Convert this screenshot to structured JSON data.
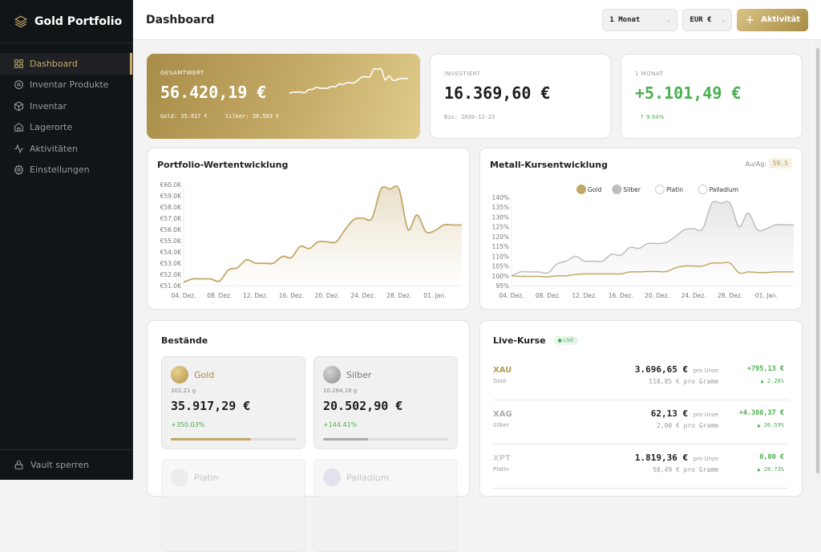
{
  "sidebar": {
    "brand": "Gold Portfolio",
    "items": [
      {
        "label": "Dashboard",
        "icon": "grid-icon",
        "active": true
      },
      {
        "label": "Inventar Produkte",
        "icon": "target-icon"
      },
      {
        "label": "Inventar",
        "icon": "box-icon"
      },
      {
        "label": "Lagerorte",
        "icon": "home-icon"
      },
      {
        "label": "Aktivitäten",
        "icon": "activity-icon"
      },
      {
        "label": "Einstellungen",
        "icon": "gear-icon"
      }
    ],
    "footer": "Vault sperren"
  },
  "header": {
    "title": "Dashboard",
    "period": "1 Monat",
    "currency": "EUR €",
    "add_label": "Aktivität"
  },
  "stats": {
    "total": {
      "label": "GESAMTWERT",
      "value": "56.420,19 €",
      "gold": "Gold: 35.917 €",
      "silver": "Silber: 20.503 €"
    },
    "invested": {
      "label": "INVESTIERT",
      "value": "16.369,60 €",
      "sub": "Bis: 2020-12-23"
    },
    "month": {
      "label": "1 MONAT",
      "value": "+5.101,49 €",
      "sub": "↑ 9.94%"
    }
  },
  "colors": {
    "gold": "#c2a867",
    "silver": "#bdbdbd",
    "positive": "#4caf50",
    "sidebar": "#111518"
  },
  "chart_data": [
    {
      "type": "area",
      "title": "Portfolio-Wertentwicklung",
      "x_ticks": [
        "04. Dez.",
        "08. Dez.",
        "12. Dez.",
        "16. Dez.",
        "20. Dez.",
        "24. Dez.",
        "28. Dez.",
        "01. Jan."
      ],
      "y_ticks": [
        "€51.0K",
        "€52.0K",
        "€53.0K",
        "€54.0K",
        "€55.0K",
        "€56.0K",
        "€57.0K",
        "€58.0K",
        "€59.0K",
        "€60.0K"
      ],
      "ylim": [
        51,
        60
      ],
      "unit": "K €",
      "grid": false,
      "series": [
        {
          "values": [
            51.3,
            51.6,
            51.6,
            51.6,
            51.4,
            52.4,
            52.6,
            53.3,
            53.0,
            53.0,
            53.0,
            53.6,
            53.5,
            54.5,
            54.3,
            54.9,
            54.9,
            54.9,
            56.0,
            56.9,
            57.0,
            57.0,
            59.6,
            59.6,
            59.6,
            56.0,
            57.3,
            55.8,
            55.9,
            56.4,
            56.4,
            56.4
          ]
        }
      ]
    },
    {
      "type": "line",
      "title": "Metall-Kursentwicklung",
      "ratio_label": "Au/Ag:",
      "ratio_value": "59.5",
      "legend_position": "top",
      "legend": [
        {
          "name": "Gold",
          "color": "#c2a867"
        },
        {
          "name": "Silber",
          "color": "#bdbdbd"
        },
        {
          "name": "Platin",
          "color": "#ffffff"
        },
        {
          "name": "Palladium",
          "color": "#ffffff"
        }
      ],
      "x_ticks": [
        "04. Dez.",
        "08. Dez.",
        "12. Dez.",
        "16. Dez.",
        "20. Dez.",
        "24. Dez.",
        "28. Dez.",
        "01. Jan."
      ],
      "y_ticks": [
        "95%",
        "100%",
        "105%",
        "110%",
        "115%",
        "120%",
        "125%",
        "130%",
        "135%",
        "140%"
      ],
      "ylim": [
        95,
        140
      ],
      "grid": false,
      "series": [
        {
          "name": "Silber",
          "values": [
            100,
            102,
            102,
            102,
            101.5,
            106,
            107.5,
            110,
            107.5,
            107.5,
            107.5,
            111,
            110.5,
            114.5,
            114,
            116.5,
            116.5,
            117,
            120,
            123.5,
            124,
            124,
            137,
            137,
            137,
            125,
            132,
            123.5,
            124,
            126,
            126,
            126
          ]
        },
        {
          "name": "Gold",
          "values": [
            100,
            99.7,
            99.7,
            99.7,
            99.5,
            100,
            100,
            100.7,
            101,
            101,
            101,
            101,
            101,
            102,
            102,
            102.2,
            102.2,
            102.2,
            104,
            105,
            105,
            105,
            106.5,
            106.5,
            106.5,
            101.5,
            102,
            101.7,
            101.7,
            102,
            102,
            102
          ]
        }
      ]
    }
  ],
  "holdings": {
    "title": "Bestände",
    "items": [
      {
        "name": "Gold",
        "weight": "302,21 g",
        "value": "35.917,29 €",
        "change": "+350.03%",
        "share": 0.64
      },
      {
        "name": "Silber",
        "weight": "10.264,16 g",
        "value": "20.502,90 €",
        "change": "+144.41%",
        "share": 0.36
      },
      {
        "name": "Platin"
      },
      {
        "name": "Palladium"
      }
    ]
  },
  "live": {
    "title": "Live-Kurse",
    "badge": "LIVE",
    "rows": [
      {
        "symbol": "XAU",
        "name": "Gold",
        "per_oz": "3.696,65 €",
        "oz_unit": "pro Unze",
        "per_g": "118,85 € pro Gramm",
        "change": "+795,13 €",
        "pct": "▲ 2.26%"
      },
      {
        "symbol": "XAG",
        "name": "Silber",
        "per_oz": "62,13 €",
        "oz_unit": "pro Unze",
        "per_g": "2,00 € pro Gramm",
        "change": "+4.306,37 €",
        "pct": "▲ 26.59%"
      },
      {
        "symbol": "XPT",
        "name": "Platin",
        "per_oz": "1.819,36 €",
        "oz_unit": "pro Unze",
        "per_g": "58,49 € pro Gramm",
        "change": "0,00 €",
        "pct": "▲ 28.73%"
      }
    ]
  }
}
